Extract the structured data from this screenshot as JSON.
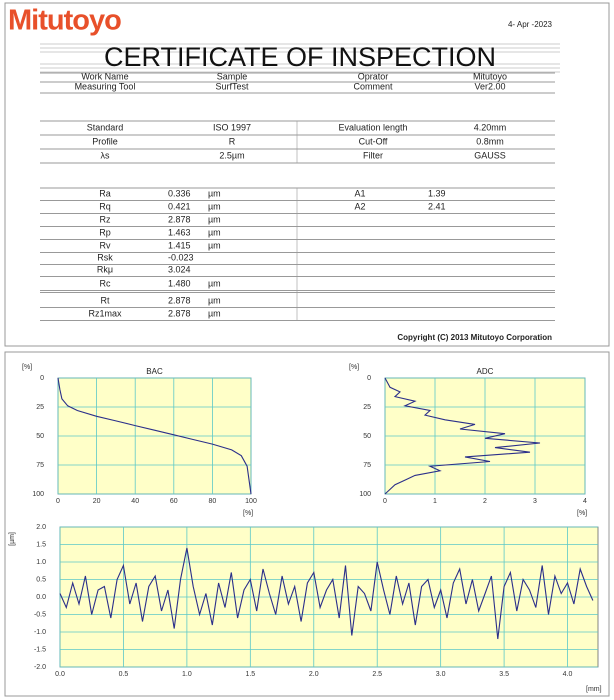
{
  "header": {
    "logo": "Mitutoyo",
    "date": "4- Apr -2023",
    "title": "CERTIFICATE OF INSPECTION"
  },
  "info": {
    "rows": [
      [
        "Work Name",
        "Sample",
        "Oprator",
        "Mitutoyo"
      ],
      [
        "Measuring Tool",
        "SurfTest",
        "Comment",
        "Ver2.00"
      ]
    ]
  },
  "conditions": {
    "rows": [
      [
        "Standard",
        "ISO 1997",
        "Evaluation length",
        "4.20mm"
      ],
      [
        "Profile",
        "R",
        "Cut-Off",
        "0.8mm"
      ],
      [
        "λs",
        "2.5µm",
        "Filter",
        "GAUSS"
      ]
    ]
  },
  "results": {
    "rows": [
      [
        "Ra",
        "0.336",
        "µm"
      ],
      [
        "Rq",
        "0.421",
        "µm"
      ],
      [
        "Rz",
        "2.878",
        "µm"
      ],
      [
        "Rp",
        "1.463",
        "µm"
      ],
      [
        "Rv",
        "1.415",
        "µm"
      ],
      [
        "Rsk",
        "-0.023"
      ],
      [
        "Rkμ",
        "3.024"
      ],
      [
        "Rc",
        "1.480",
        "µm"
      ],
      [
        "Rt",
        "2.878",
        "µm"
      ],
      [
        "Rz1max",
        "2.878",
        "µm"
      ]
    ],
    "extra": [
      [
        "A1",
        "1.39"
      ],
      [
        "A2",
        "2.41"
      ]
    ]
  },
  "footer": {
    "copyright": "Copyright (C) 2013 Mitutoyo Corporation"
  },
  "chart_data": [
    {
      "type": "line",
      "title": "BAC",
      "y_unit": "[%]",
      "x_unit": "[%]",
      "color": "#2b2f8a",
      "background": "#ffffc8",
      "grid_color": "#5cc8c8",
      "y_inverted": true,
      "x": [
        0,
        1,
        2,
        5,
        10,
        20,
        30,
        40,
        50,
        60,
        70,
        80,
        90,
        95,
        98,
        100
      ],
      "values": [
        0,
        10,
        18,
        24,
        28,
        33,
        37,
        41,
        45,
        49,
        53,
        57,
        62,
        67,
        76,
        100
      ],
      "xlim": [
        0,
        100
      ],
      "ylim": [
        0,
        100
      ],
      "xticks": [
        0,
        20,
        40,
        60,
        80,
        100
      ],
      "yticks": [
        0,
        25,
        50,
        75,
        100
      ]
    },
    {
      "type": "line",
      "title": "ADC",
      "y_unit": "[%]",
      "x_unit": "[%]",
      "color": "#2b2f8a",
      "background": "#ffffc8",
      "grid_color": "#5cc8c8",
      "y_inverted": true,
      "x": [
        0,
        0.05,
        0.1,
        0.3,
        0.2,
        0.6,
        0.4,
        0.9,
        0.8,
        1.2,
        1.8,
        1.5,
        2.4,
        2.0,
        3.1,
        2.2,
        2.9,
        1.6,
        2.1,
        0.9,
        1.1,
        0.6,
        0.4,
        0.2,
        0.1,
        0
      ],
      "values": [
        0,
        4,
        8,
        12,
        16,
        20,
        24,
        28,
        32,
        36,
        40,
        44,
        48,
        52,
        56,
        60,
        64,
        68,
        72,
        76,
        80,
        84,
        88,
        92,
        96,
        100
      ],
      "xlim": [
        0,
        4
      ],
      "ylim": [
        0,
        100
      ],
      "xticks": [
        0,
        1,
        2,
        3,
        4
      ],
      "yticks": [
        0,
        25,
        50,
        75,
        100
      ]
    },
    {
      "type": "line",
      "y_unit": "[µm]",
      "x_unit": "[mm]",
      "color": "#2b2f8a",
      "background": "#ffffc8",
      "grid_color": "#5cc8c8",
      "x": [
        0,
        0.05,
        0.1,
        0.15,
        0.2,
        0.25,
        0.3,
        0.35,
        0.4,
        0.45,
        0.5,
        0.55,
        0.6,
        0.65,
        0.7,
        0.75,
        0.8,
        0.85,
        0.9,
        0.95,
        1.0,
        1.05,
        1.1,
        1.15,
        1.2,
        1.25,
        1.3,
        1.35,
        1.4,
        1.45,
        1.5,
        1.55,
        1.6,
        1.65,
        1.7,
        1.75,
        1.8,
        1.85,
        1.9,
        1.95,
        2.0,
        2.05,
        2.1,
        2.15,
        2.2,
        2.25,
        2.3,
        2.35,
        2.4,
        2.45,
        2.5,
        2.55,
        2.6,
        2.65,
        2.7,
        2.75,
        2.8,
        2.85,
        2.9,
        2.95,
        3.0,
        3.05,
        3.1,
        3.15,
        3.2,
        3.25,
        3.3,
        3.35,
        3.4,
        3.45,
        3.5,
        3.55,
        3.6,
        3.65,
        3.7,
        3.75,
        3.8,
        3.85,
        3.9,
        3.95,
        4.0,
        4.05,
        4.1,
        4.15,
        4.2
      ],
      "values": [
        0.1,
        -0.3,
        0.4,
        -0.2,
        0.6,
        -0.5,
        0.2,
        0.3,
        -0.6,
        0.5,
        0.9,
        -0.2,
        0.4,
        -0.7,
        0.3,
        0.6,
        -0.4,
        0.2,
        -0.9,
        0.5,
        1.4,
        0.3,
        -0.5,
        0.1,
        -0.8,
        0.4,
        -0.3,
        0.7,
        -0.6,
        0.2,
        0.5,
        -0.4,
        0.8,
        0.1,
        -0.5,
        0.6,
        -0.2,
        0.3,
        -0.7,
        0.4,
        0.7,
        -0.3,
        0.2,
        0.5,
        -0.6,
        0.9,
        -1.1,
        0.3,
        0.1,
        -0.4,
        1.0,
        0.2,
        -0.5,
        0.6,
        -0.2,
        0.4,
        -0.8,
        0.3,
        0.5,
        -0.3,
        0.2,
        -0.6,
        0.4,
        0.8,
        -0.2,
        0.5,
        -0.4,
        0.1,
        0.6,
        -1.2,
        0.3,
        0.7,
        -0.4,
        0.5,
        0.2,
        -0.3,
        0.9,
        -0.5,
        0.6,
        0.1,
        0.4,
        -0.2,
        0.8,
        0.3,
        -0.1
      ],
      "xlim": [
        0,
        4.24
      ],
      "ylim": [
        -2,
        2
      ],
      "xticks": [
        {
          "value": 0,
          "label": "0.0"
        },
        {
          "value": 0.5,
          "label": "0.5"
        },
        {
          "value": 1,
          "label": "1.0"
        },
        {
          "value": 1.5,
          "label": "1.5"
        },
        {
          "value": 2,
          "label": "2.0"
        },
        {
          "value": 2.5,
          "label": "2.5"
        },
        {
          "value": 3,
          "label": "3.0"
        },
        {
          "value": 3.5,
          "label": "3.5"
        },
        {
          "value": 4,
          "label": "4.0"
        }
      ],
      "yticks": [
        {
          "value": -2,
          "label": "-2.0"
        },
        {
          "value": -1.5,
          "label": "-1.5"
        },
        {
          "value": -1,
          "label": "-1.0"
        },
        {
          "value": -0.5,
          "label": "-0.5"
        },
        {
          "value": 0,
          "label": "0.0"
        },
        {
          "value": 0.5,
          "label": "0.5"
        },
        {
          "value": 1,
          "label": "1.0"
        },
        {
          "value": 1.5,
          "label": "1.5"
        },
        {
          "value": 2,
          "label": "2.0"
        }
      ]
    }
  ]
}
